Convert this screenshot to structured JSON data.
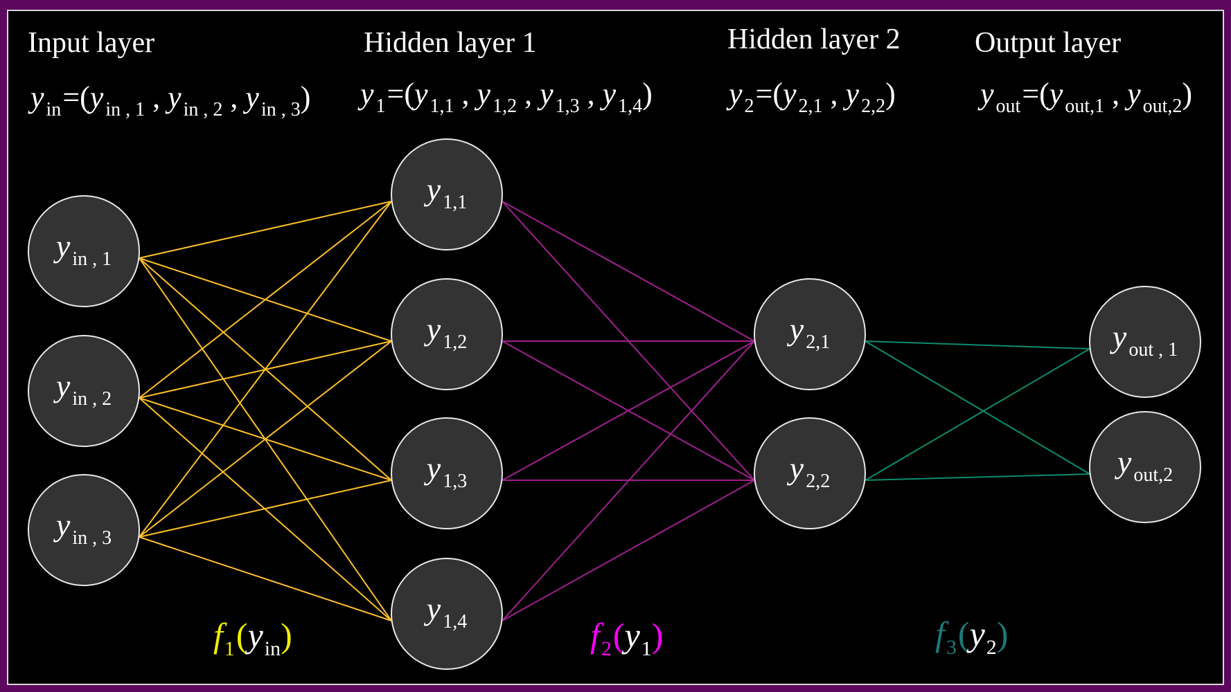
{
  "layers": [
    {
      "id": "input",
      "title": "Input layer",
      "formula": {
        "lhs_var": "y",
        "lhs_sub": "in",
        "equals": "=",
        "open": "(",
        "close": ")",
        "terms": [
          {
            "var": "y",
            "sub": "in , 1"
          },
          {
            "var": "y",
            "sub": "in , 2"
          },
          {
            "var": "y",
            "sub": "in , 3"
          }
        ]
      },
      "nodes": [
        {
          "var": "y",
          "sub": "in , 1"
        },
        {
          "var": "y",
          "sub": "in , 2"
        },
        {
          "var": "y",
          "sub": "in , 3"
        }
      ]
    },
    {
      "id": "hidden1",
      "title": "Hidden layer 1",
      "formula": {
        "lhs_var": "y",
        "lhs_sub": "1",
        "equals": "=",
        "open": "(",
        "close": ")",
        "terms": [
          {
            "var": "y",
            "sub": "1,1"
          },
          {
            "var": "y",
            "sub": "1,2"
          },
          {
            "var": "y",
            "sub": "1,3"
          },
          {
            "var": "y",
            "sub": "1,4"
          }
        ]
      },
      "nodes": [
        {
          "var": "y",
          "sub": "1,1"
        },
        {
          "var": "y",
          "sub": "1,2"
        },
        {
          "var": "y",
          "sub": "1,3"
        },
        {
          "var": "y",
          "sub": "1,4"
        }
      ]
    },
    {
      "id": "hidden2",
      "title": "Hidden layer 2",
      "formula": {
        "lhs_var": "y",
        "lhs_sub": "2",
        "equals": "=",
        "open": "(",
        "close": ")",
        "terms": [
          {
            "var": "y",
            "sub": "2,1"
          },
          {
            "var": "y",
            "sub": "2,2"
          }
        ]
      },
      "nodes": [
        {
          "var": "y",
          "sub": "2,1"
        },
        {
          "var": "y",
          "sub": "2,2"
        }
      ]
    },
    {
      "id": "output",
      "title": "Output layer",
      "formula": {
        "lhs_var": "y",
        "lhs_sub": "out",
        "equals": "=",
        "open": "(",
        "close": ")",
        "terms": [
          {
            "var": "y",
            "sub": "out,1"
          },
          {
            "var": "y",
            "sub": "out,2"
          }
        ]
      },
      "nodes": [
        {
          "var": "y",
          "sub": "out , 1"
        },
        {
          "var": "y",
          "sub": "out,2"
        }
      ]
    }
  ],
  "functions": [
    {
      "f": "f",
      "f_sub": "1",
      "open": "(",
      "arg_var": "y",
      "arg_sub": "in",
      "close": ")",
      "color": "#f0f000"
    },
    {
      "f": "f",
      "f_sub": "2",
      "open": "(",
      "arg_var": "y",
      "arg_sub": "1",
      "close": ")",
      "color": "#ff00ff"
    },
    {
      "f": "f",
      "f_sub": "3",
      "open": "(",
      "arg_var": "y",
      "arg_sub": "2",
      "close": ")",
      "color": "#1a7a7a"
    }
  ],
  "colors": {
    "frame": "#5e075e",
    "background": "#000000",
    "border": "#d8d8d8",
    "node_fill": "#333333",
    "node_stroke": "#e8e8e8",
    "edges_1": "#ffc125",
    "edges_2": "#a0208f",
    "edges_3": "#0c8c6e"
  }
}
